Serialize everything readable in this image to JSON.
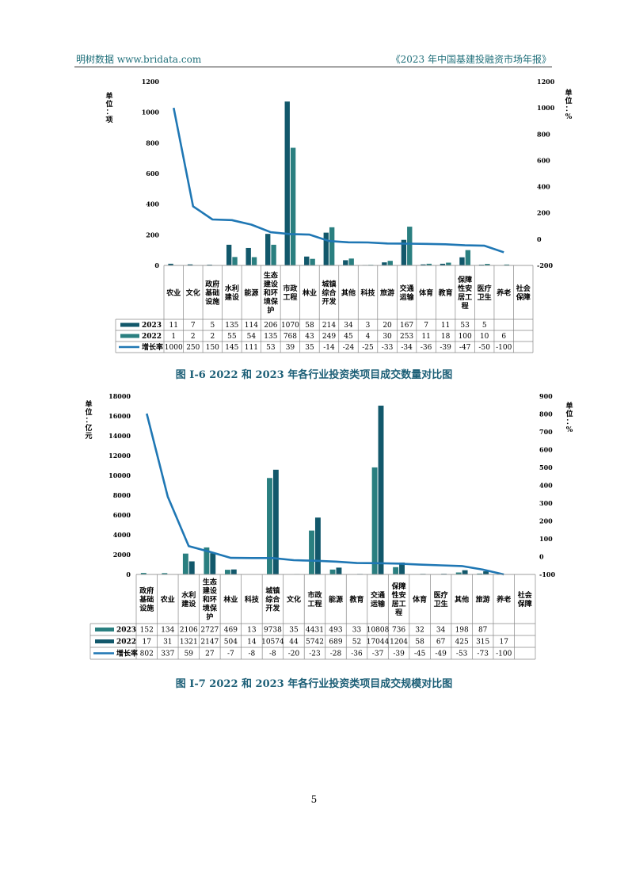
{
  "header": {
    "left": "明树数据 www.bridata.com",
    "right": "《2023 年中国基建投融资市场年报》"
  },
  "page_number": "5",
  "chart_data": [
    {
      "type": "bar",
      "title": "图 I-6 2022 和 2023 年各行业投资类项目成交数量对比图",
      "ylabel": "单位：项",
      "y2label": "单位：%",
      "ylim": [
        0,
        1200
      ],
      "yticks": [
        "0",
        "200",
        "400",
        "600",
        "800",
        "1000",
        "1200"
      ],
      "y2lim": [
        -200,
        1200
      ],
      "y2ticks": [
        "-200",
        "0",
        "200",
        "400",
        "600",
        "800",
        "1000",
        "1200"
      ],
      "categories": [
        [
          "农业"
        ],
        [
          "文化"
        ],
        [
          "政府",
          "基础",
          "设施"
        ],
        [
          "水利",
          "建设"
        ],
        [
          "能源"
        ],
        [
          "生态",
          "建设",
          "和环",
          "境保",
          "护"
        ],
        [
          "市政",
          "工程"
        ],
        [
          "林业"
        ],
        [
          "城镇",
          "综合",
          "开发"
        ],
        [
          "其他"
        ],
        [
          "科技"
        ],
        [
          "旅游"
        ],
        [
          "交通",
          "运输"
        ],
        [
          "体育"
        ],
        [
          "教育"
        ],
        [
          "保障",
          "性安",
          "居工",
          "程"
        ],
        [
          "医疗",
          "卫生"
        ],
        [
          "养老"
        ],
        [
          "社会",
          "保障"
        ]
      ],
      "series": [
        {
          "name": "2023",
          "kind": "bar",
          "color": "#12586b",
          "values": [
            11,
            7,
            5,
            135,
            114,
            206,
            1070,
            58,
            214,
            34,
            3,
            20,
            167,
            7,
            11,
            53,
            5,
            null,
            null
          ],
          "labels": [
            "11",
            "7",
            "5",
            "135",
            "114",
            "206",
            "1070",
            "58",
            "214",
            "34",
            "3",
            "20",
            "167",
            "7",
            "11",
            "53",
            "5",
            "",
            ""
          ]
        },
        {
          "name": "2022",
          "kind": "bar",
          "color": "#2a7f80",
          "values": [
            1,
            2,
            2,
            55,
            54,
            135,
            768,
            43,
            249,
            45,
            4,
            30,
            253,
            11,
            18,
            100,
            10,
            6,
            null
          ],
          "labels": [
            "1",
            "2",
            "2",
            "55",
            "54",
            "135",
            "768",
            "43",
            "249",
            "45",
            "4",
            "30",
            "253",
            "11",
            "18",
            "100",
            "10",
            "6",
            ""
          ]
        },
        {
          "name": "增长率",
          "kind": "line",
          "axis": "right",
          "color": "#1f77b4",
          "values": [
            1000,
            250,
            150,
            145,
            111,
            53,
            39,
            35,
            -14,
            -24,
            -25,
            -33,
            -34,
            -36,
            -39,
            -47,
            -50,
            -100,
            null
          ],
          "labels": [
            "1000",
            "250",
            "150",
            "145",
            "111",
            "53",
            "39",
            "35",
            "-14",
            "-24",
            "-25",
            "-33",
            "-34",
            "-36",
            "-39",
            "-47",
            "-50",
            "-100",
            ""
          ]
        }
      ]
    },
    {
      "type": "bar",
      "title": "图 I-7 2022 和 2023 年各行业投资类项目成交规模对比图",
      "ylabel": "单位：亿元",
      "y2label": "单位：%",
      "ylim": [
        0,
        18000
      ],
      "yticks": [
        "0",
        "2000",
        "4000",
        "6000",
        "8000",
        "10000",
        "12000",
        "14000",
        "16000",
        "18000"
      ],
      "y2lim": [
        -100,
        900
      ],
      "y2ticks": [
        "-100",
        "0",
        "100",
        "200",
        "300",
        "400",
        "500",
        "600",
        "700",
        "800",
        "900"
      ],
      "categories": [
        [
          "政府",
          "基础",
          "设施"
        ],
        [
          "农业"
        ],
        [
          "水利",
          "建设"
        ],
        [
          "生态",
          "建设",
          "和环",
          "境保",
          "护"
        ],
        [
          "林业"
        ],
        [
          "科技"
        ],
        [
          "城镇",
          "综合",
          "开发"
        ],
        [
          "文化"
        ],
        [
          "市政",
          "工程"
        ],
        [
          "能源"
        ],
        [
          "教育"
        ],
        [
          "交通",
          "运输"
        ],
        [
          "保障",
          "性安",
          "居工",
          "程"
        ],
        [
          "体育"
        ],
        [
          "医疗",
          "卫生"
        ],
        [
          "其他"
        ],
        [
          "旅游"
        ],
        [
          "养老"
        ],
        [
          "社会",
          "保障"
        ]
      ],
      "series": [
        {
          "name": "2023",
          "kind": "bar",
          "color": "#2a7f80",
          "values": [
            152,
            134,
            2106,
            2727,
            469,
            13,
            9738,
            35,
            4431,
            493,
            33,
            10808,
            736,
            32,
            34,
            198,
            87,
            null,
            null
          ],
          "labels": [
            "152",
            "134",
            "2106",
            "2727",
            "469",
            "13",
            "9738",
            "35",
            "4431",
            "493",
            "33",
            "10808",
            "736",
            "32",
            "34",
            "198",
            "87",
            "",
            ""
          ]
        },
        {
          "name": "2022",
          "kind": "bar",
          "color": "#12586b",
          "values": [
            17,
            31,
            1321,
            2147,
            504,
            14,
            10574,
            44,
            5742,
            689,
            52,
            17044,
            1204,
            58,
            67,
            425,
            315,
            17,
            null
          ],
          "labels": [
            "17",
            "31",
            "1321",
            "2147",
            "504",
            "14",
            "10574",
            "44",
            "5742",
            "689",
            "52",
            "17044",
            "1204",
            "58",
            "67",
            "425",
            "315",
            "17",
            ""
          ]
        },
        {
          "name": "增长率",
          "kind": "line",
          "axis": "right",
          "color": "#1f77b4",
          "values": [
            802,
            337,
            59,
            27,
            -7,
            -8,
            -8,
            -20,
            -23,
            -28,
            -36,
            -37,
            -39,
            -45,
            -49,
            -53,
            -73,
            -100,
            null
          ],
          "labels": [
            "802",
            "337",
            "59",
            "27",
            "-7",
            "-8",
            "-8",
            "-20",
            "-23",
            "-28",
            "-36",
            "-37",
            "-39",
            "-45",
            "-49",
            "-53",
            "-73",
            "-100",
            ""
          ]
        }
      ]
    }
  ]
}
